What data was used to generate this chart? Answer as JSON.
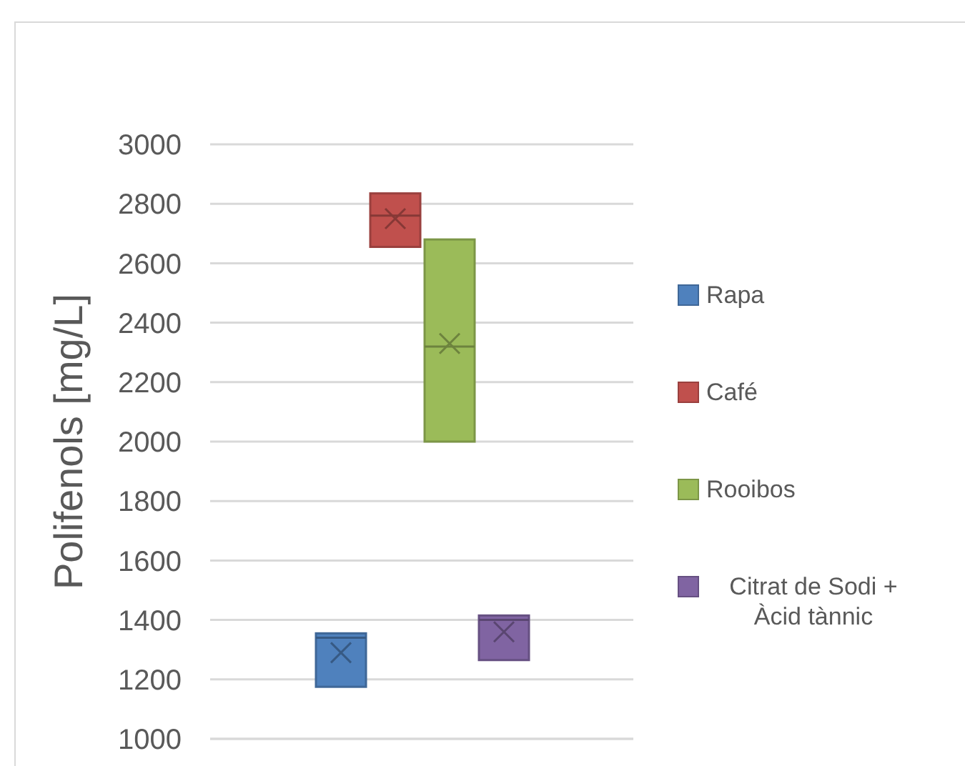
{
  "chart_data": {
    "type": "box",
    "ylabel": "Polifenols [mg/L]",
    "categories": [
      null
    ],
    "series": [
      {
        "name": "Rapa",
        "color": "#4f81bd",
        "boxes": [
          {
            "low": 1175,
            "q1": 1175,
            "median": 1340,
            "q3": 1355,
            "high": 1355,
            "mean": 1290
          }
        ]
      },
      {
        "name": "Café",
        "color": "#c0504d",
        "boxes": [
          {
            "low": 2655,
            "q1": 2655,
            "median": 2760,
            "q3": 2835,
            "high": 2835,
            "mean": 2750
          }
        ]
      },
      {
        "name": "Rooibos",
        "color": "#9bbb59",
        "boxes": [
          {
            "low": 2000,
            "q1": 2000,
            "median": 2320,
            "q3": 2680,
            "high": 2680,
            "mean": 2330
          }
        ]
      },
      {
        "name": "Citrat de Sodi + Àcid tànnic",
        "color": "#8064a2",
        "boxes": [
          {
            "low": 1265,
            "q1": 1265,
            "median": 1400,
            "q3": 1415,
            "high": 1415,
            "mean": 1360
          }
        ]
      }
    ],
    "ylim": [
      1000,
      3000
    ],
    "yticks": [
      1000,
      1200,
      1400,
      1600,
      1800,
      2000,
      2200,
      2400,
      2600,
      2800,
      3000
    ],
    "grid": "y",
    "legend": "right"
  }
}
